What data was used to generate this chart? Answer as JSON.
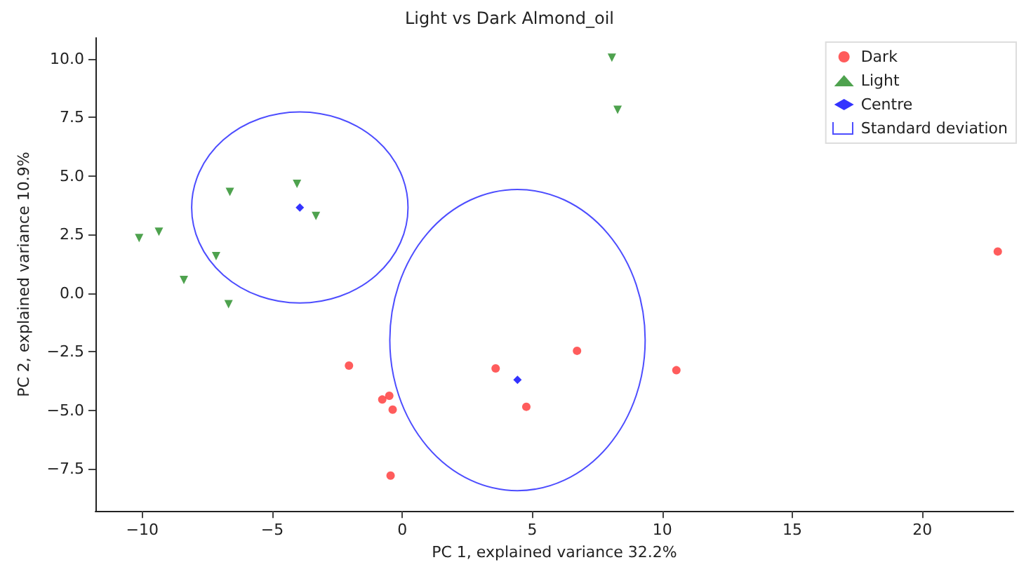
{
  "chart_data": {
    "type": "scatter",
    "title": "Light vs Dark Almond_oil",
    "xlabel": "PC 1, explained variance 32.2%",
    "ylabel": "PC 2, explained variance 10.9%",
    "annotations": [
      "Standard deviation"
    ],
    "xlim": [
      -11.8,
      23.5
    ],
    "ylim": [
      -9.3,
      10.9
    ],
    "xticks": [
      {
        "value": -10,
        "label": "−10"
      },
      {
        "value": -5,
        "label": "−5"
      },
      0,
      5,
      10,
      15,
      20
    ],
    "yticks": [
      {
        "value": -7.5,
        "label": "−7.5"
      },
      {
        "value": -5,
        "label": "−5.0"
      },
      {
        "value": -2.5,
        "label": "−2.5"
      },
      {
        "value": 0,
        "label": "0.0"
      },
      {
        "value": 2.5,
        "label": "2.5"
      },
      {
        "value": 5,
        "label": "5.0"
      },
      {
        "value": 7.5,
        "label": "7.5"
      },
      {
        "value": 10,
        "label": "10.0"
      }
    ],
    "grid": false,
    "legend": "top right",
    "series": [
      {
        "name": "Dark",
        "type": "scatter",
        "marker": "circle",
        "color": "#ff3333",
        "x": [
          -2.05,
          3.59,
          6.72,
          10.54,
          4.77,
          -0.77,
          -0.5,
          -0.37,
          -0.45,
          22.9
        ],
        "values": [
          -3.09,
          -3.21,
          -2.46,
          -3.29,
          -4.85,
          -4.54,
          -4.38,
          -4.97,
          -7.79,
          1.78
        ]
      },
      {
        "name": "Light",
        "type": "scatter",
        "marker": "triangle",
        "color": "#228b22",
        "x": [
          -10.12,
          -9.36,
          -6.63,
          -4.05,
          -3.32,
          -7.16,
          -8.4,
          -6.68,
          8.06,
          8.28
        ],
        "values": [
          2.35,
          2.62,
          4.32,
          4.67,
          3.3,
          1.58,
          0.56,
          -0.47,
          10.05,
          7.83
        ]
      },
      {
        "name": "Centre",
        "type": "scatter",
        "marker": "diamond",
        "color": "#0000ff",
        "x": [
          -3.94,
          4.43
        ],
        "values": [
          3.66,
          -3.7
        ]
      }
    ]
  }
}
